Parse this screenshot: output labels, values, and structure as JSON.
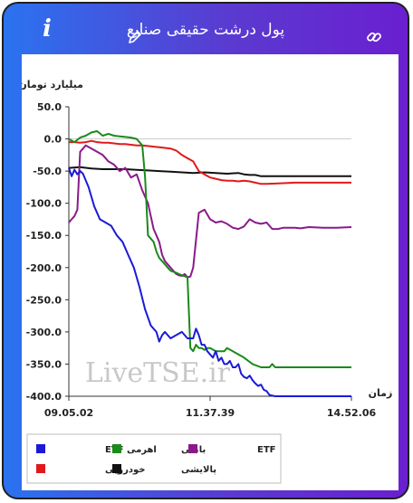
{
  "header": {
    "title": "پول درشت حقیقی صنایع",
    "info_icon": "i",
    "icons": [
      "info-icon",
      "pencil-icon",
      "link-icon"
    ]
  },
  "colors": {
    "gradient_left": "#2a73f0",
    "gradient_right": "#6a1fd0",
    "etf_leveraged": "#1a1ad8",
    "banking": "#1a8a1a",
    "etf": "#8a1a8a",
    "automotive": "#e01a1a",
    "refinery": "#111111"
  },
  "watermark": "LiveTSE.ir",
  "chart_data": {
    "type": "line",
    "ylabel": "میلیارد تومان",
    "xlabel": "زمان",
    "ylim": [
      -400,
      50
    ],
    "yticks": [
      50,
      0,
      -50,
      -100,
      -150,
      -200,
      -250,
      -300,
      -350,
      -400
    ],
    "ytick_labels": [
      "50.0",
      "0.0",
      "-50.0",
      "-100.0",
      "-150.0",
      "-200.0",
      "-250.0",
      "-300.0",
      "-350.0",
      "-400.0"
    ],
    "xlim": [
      0,
      100
    ],
    "xtick_positions": [
      0,
      50,
      100
    ],
    "xtick_labels": [
      "09.05.02",
      "11.37.39",
      "14.52.06"
    ],
    "grid": false,
    "legend_position": "bottom",
    "series": [
      {
        "name": "ETF اهرمی",
        "color": "#1a1ad8",
        "x": [
          0,
          1,
          2,
          3,
          4,
          5,
          7,
          9,
          11,
          13,
          15,
          17,
          19,
          21,
          23,
          25,
          27,
          29,
          31,
          32,
          33,
          34,
          35,
          36,
          38,
          40,
          42,
          44,
          45,
          46,
          47,
          48,
          49,
          50,
          51,
          52,
          53,
          54,
          55,
          56,
          57,
          58,
          59,
          60,
          61,
          62,
          63,
          64,
          65,
          66,
          67,
          68,
          69,
          70,
          71,
          73,
          75,
          78,
          81,
          84,
          87,
          90,
          93,
          96,
          98,
          100
        ],
        "y": [
          -45,
          -58,
          -48,
          -55,
          -50,
          -54,
          -75,
          -105,
          -125,
          -130,
          -135,
          -150,
          -160,
          -180,
          -200,
          -230,
          -265,
          -290,
          -300,
          -315,
          -305,
          -300,
          -305,
          -310,
          -305,
          -300,
          -310,
          -310,
          -295,
          -305,
          -320,
          -320,
          -330,
          -335,
          -340,
          -330,
          -345,
          -340,
          -350,
          -350,
          -345,
          -355,
          -355,
          -350,
          -365,
          -370,
          -372,
          -368,
          -375,
          -380,
          -384,
          -382,
          -390,
          -392,
          -398,
          -400,
          -400,
          -400,
          -400,
          -400,
          -400,
          -400,
          -400,
          -400,
          -400,
          -400
        ]
      },
      {
        "name": "بانکی",
        "color": "#1a8a1a",
        "x": [
          0,
          2,
          4,
          6,
          8,
          10,
          12,
          14,
          16,
          18,
          20,
          22,
          24,
          26,
          27,
          28,
          29,
          30,
          31,
          32,
          33,
          34,
          35,
          36,
          38,
          40,
          42,
          43,
          44,
          45,
          46,
          47,
          48,
          49,
          50,
          52,
          55,
          56,
          58,
          60,
          62,
          65,
          68,
          70,
          71,
          72,
          73,
          74,
          75,
          78,
          80,
          85,
          90,
          95,
          100
        ],
        "y": [
          0,
          -5,
          2,
          5,
          10,
          12,
          5,
          8,
          5,
          4,
          3,
          2,
          0,
          -10,
          -60,
          -150,
          -155,
          -160,
          -175,
          -185,
          -190,
          -195,
          -200,
          -205,
          -208,
          -212,
          -215,
          -325,
          -330,
          -320,
          -325,
          -325,
          -328,
          -325,
          -325,
          -330,
          -330,
          -325,
          -330,
          -335,
          -340,
          -350,
          -355,
          -355,
          -355,
          -350,
          -355,
          -355,
          -355,
          -355,
          -355,
          -355,
          -355,
          -355,
          -355
        ]
      },
      {
        "name": "ETF",
        "color": "#8a1a8a",
        "x": [
          0,
          1,
          2,
          3,
          4,
          6,
          8,
          10,
          12,
          14,
          16,
          18,
          20,
          22,
          24,
          26,
          28,
          30,
          31,
          32,
          33,
          34,
          35,
          36,
          37,
          38,
          39,
          40,
          41,
          42,
          43,
          44,
          46,
          48,
          50,
          52,
          54,
          56,
          58,
          60,
          62,
          64,
          66,
          68,
          70,
          72,
          74,
          76,
          78,
          80,
          82,
          85,
          90,
          95,
          100
        ],
        "y": [
          -130,
          -125,
          -120,
          -110,
          -20,
          -10,
          -15,
          -20,
          -25,
          -35,
          -40,
          -50,
          -45,
          -60,
          -55,
          -80,
          -100,
          -140,
          -150,
          -160,
          -180,
          -190,
          -195,
          -200,
          -205,
          -210,
          -212,
          -213,
          -210,
          -215,
          -214,
          -200,
          -115,
          -110,
          -125,
          -130,
          -128,
          -132,
          -138,
          -140,
          -136,
          -125,
          -130,
          -132,
          -130,
          -140,
          -140,
          -138,
          -138,
          -138,
          -139,
          -137,
          -138,
          -138,
          -137
        ]
      },
      {
        "name": "خودرویی",
        "color": "#e01a1a",
        "x": [
          0,
          2,
          4,
          6,
          8,
          10,
          12,
          14,
          16,
          18,
          20,
          22,
          24,
          26,
          28,
          30,
          32,
          34,
          36,
          38,
          40,
          42,
          44,
          46,
          48,
          50,
          52,
          54,
          56,
          58,
          60,
          62,
          64,
          66,
          68,
          70,
          75,
          80,
          85,
          90,
          95,
          100
        ],
        "y": [
          -5,
          -5,
          -6,
          -5,
          -3,
          -5,
          -6,
          -6,
          -7,
          -8,
          -8,
          -9,
          -10,
          -10,
          -11,
          -12,
          -13,
          -14,
          -15,
          -18,
          -25,
          -30,
          -35,
          -50,
          -55,
          -60,
          -62,
          -64,
          -65,
          -65,
          -66,
          -65,
          -66,
          -68,
          -70,
          -70,
          -69,
          -68,
          -68,
          -68,
          -68,
          -68
        ]
      },
      {
        "name": "پالایشی",
        "color": "#111111",
        "x": [
          0,
          4,
          8,
          12,
          16,
          20,
          24,
          28,
          32,
          36,
          40,
          44,
          48,
          52,
          56,
          60,
          62,
          64,
          66,
          68,
          70,
          75,
          80,
          85,
          90,
          95,
          100
        ],
        "y": [
          -45,
          -44,
          -46,
          -47,
          -47,
          -47,
          -48,
          -49,
          -50,
          -51,
          -52,
          -53,
          -52,
          -53,
          -54,
          -53,
          -55,
          -56,
          -56,
          -58,
          -58,
          -58,
          -58,
          -58,
          -58,
          -58,
          -58
        ]
      }
    ]
  }
}
